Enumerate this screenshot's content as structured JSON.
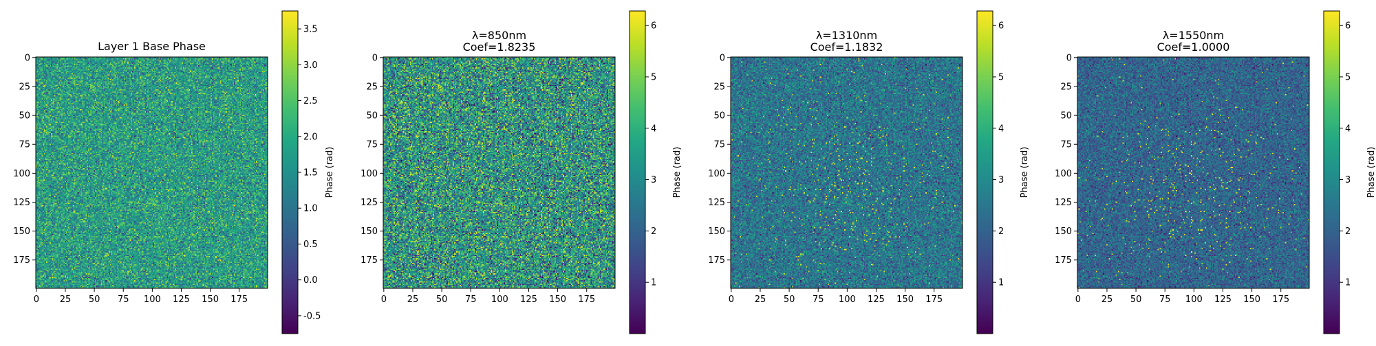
{
  "colormap": "viridis",
  "chart_data": [
    {
      "type": "heatmap",
      "title_lines": [
        "Layer 1 Base Phase"
      ],
      "x_ticks": [
        "0",
        "25",
        "50",
        "75",
        "100",
        "125",
        "150",
        "175"
      ],
      "y_ticks": [
        "0",
        "25",
        "50",
        "75",
        "100",
        "125",
        "150",
        "175"
      ],
      "grid_size": 200,
      "colorbar": {
        "label": "Phase (rad)",
        "range": [
          -0.75,
          3.75
        ],
        "ticks": [
          "-0.5",
          "0.0",
          "0.5",
          "1.0",
          "1.5",
          "2.0",
          "2.5",
          "3.0",
          "3.5"
        ],
        "tick_values": [
          -0.5,
          0.0,
          0.5,
          1.0,
          1.5,
          2.0,
          2.5,
          3.0,
          3.5
        ]
      },
      "distribution": "noise with most values between 0.5 and 3.0"
    },
    {
      "type": "heatmap",
      "title_lines": [
        "λ=850nm",
        "Coef=1.8235"
      ],
      "x_ticks": [
        "0",
        "25",
        "50",
        "75",
        "100",
        "125",
        "150",
        "175"
      ],
      "y_ticks": [
        "0",
        "25",
        "50",
        "75",
        "100",
        "125",
        "150",
        "175"
      ],
      "grid_size": 200,
      "colorbar": {
        "label": "Phase (rad)",
        "range": [
          0.0,
          6.283
        ],
        "ticks": [
          "1",
          "2",
          "3",
          "4",
          "5",
          "6"
        ],
        "tick_values": [
          1,
          2,
          3,
          4,
          5,
          6
        ]
      },
      "distribution": "noise spanning full range"
    },
    {
      "type": "heatmap",
      "title_lines": [
        "λ=1310nm",
        "Coef=1.1832"
      ],
      "x_ticks": [
        "0",
        "25",
        "50",
        "75",
        "100",
        "125",
        "150",
        "175"
      ],
      "y_ticks": [
        "0",
        "25",
        "50",
        "75",
        "100",
        "125",
        "150",
        "175"
      ],
      "grid_size": 200,
      "colorbar": {
        "label": "Phase (rad)",
        "range": [
          0.0,
          6.283
        ],
        "ticks": [
          "1",
          "2",
          "3",
          "4",
          "5",
          "6"
        ],
        "tick_values": [
          1,
          2,
          3,
          4,
          5,
          6
        ]
      },
      "distribution": "mostly 1-4 with sparse yellow points concentrated near center"
    },
    {
      "type": "heatmap",
      "title_lines": [
        "λ=1550nm",
        "Coef=1.0000"
      ],
      "x_ticks": [
        "0",
        "25",
        "50",
        "75",
        "100",
        "125",
        "150",
        "175"
      ],
      "y_ticks": [
        "0",
        "25",
        "50",
        "75",
        "100",
        "125",
        "150",
        "175"
      ],
      "grid_size": 200,
      "colorbar": {
        "label": "Phase (rad)",
        "range": [
          0.0,
          6.283
        ],
        "ticks": [
          "1",
          "2",
          "3",
          "4",
          "5",
          "6"
        ],
        "tick_values": [
          1,
          2,
          3,
          4,
          5,
          6
        ]
      },
      "distribution": "mostly 0.5-3.5 with sparse yellow points concentrated near center"
    }
  ]
}
